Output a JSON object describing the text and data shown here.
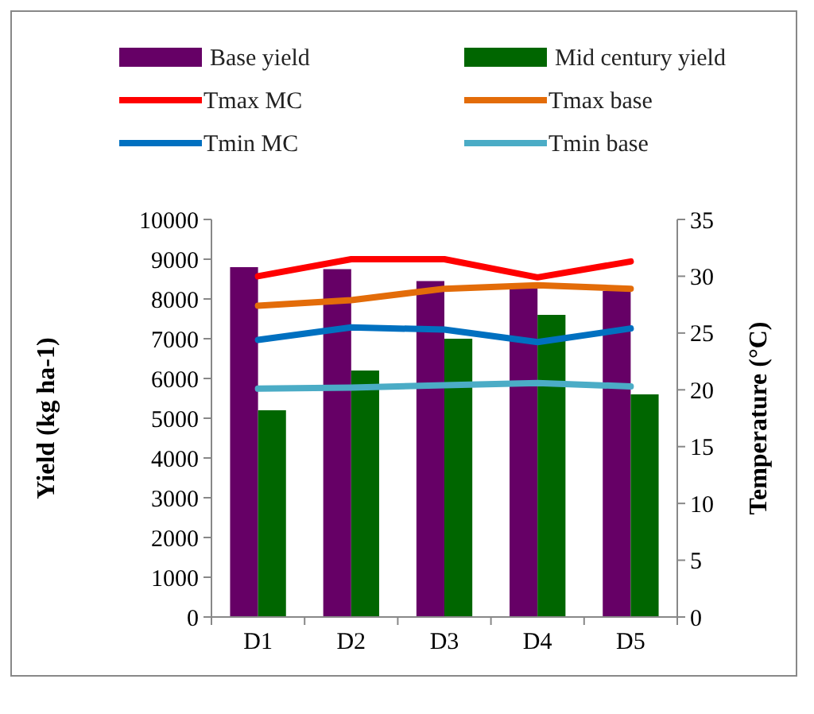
{
  "chart_data": {
    "type": "bar",
    "categories": [
      "D1",
      "D2",
      "D3",
      "D4",
      "D5"
    ],
    "ylabel": "Yield (kg ha-1)",
    "y2label": "Temperature (°C)",
    "ylim": [
      0,
      10000
    ],
    "yticks": [
      0,
      1000,
      2000,
      3000,
      4000,
      5000,
      6000,
      7000,
      8000,
      9000,
      10000
    ],
    "y2lim": [
      0,
      35
    ],
    "y2ticks": [
      0,
      5,
      10,
      15,
      20,
      25,
      30,
      35
    ],
    "legend": "top",
    "grid": false,
    "series": [
      {
        "name": "Base yield",
        "color": "#660066",
        "values": [
          8800,
          8750,
          8450,
          8300,
          8200
        ]
      },
      {
        "name": "Mid century yield",
        "color": "#006600",
        "values": [
          5200,
          6200,
          7000,
          7600,
          5600
        ]
      },
      {
        "name": "Tmax MC",
        "type": "line",
        "axis": "y2",
        "color": "#ff0000",
        "values": [
          30.0,
          31.5,
          31.5,
          29.9,
          31.3
        ]
      },
      {
        "name": "Tmax base",
        "type": "line",
        "axis": "y2",
        "color": "#e36c09",
        "values": [
          27.4,
          27.9,
          28.9,
          29.2,
          28.9
        ]
      },
      {
        "name": "Tmin MC",
        "type": "line",
        "axis": "y2",
        "color": "#0070c0",
        "values": [
          24.4,
          25.5,
          25.3,
          24.2,
          25.4
        ]
      },
      {
        "name": "Tmin base",
        "type": "line",
        "axis": "y2",
        "color": "#4bacc6",
        "values": [
          20.1,
          20.2,
          20.4,
          20.6,
          20.3
        ]
      }
    ]
  }
}
